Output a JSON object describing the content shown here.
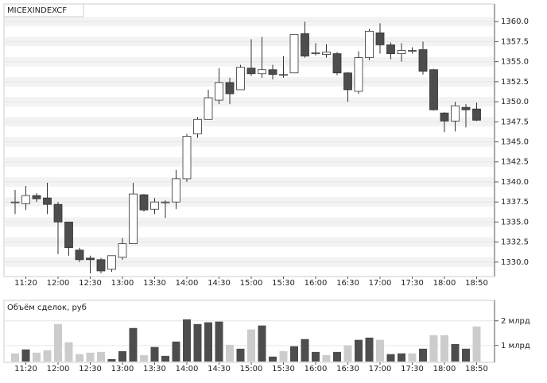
{
  "chart_data": [
    {
      "type": "candlestick",
      "title": "MICEXINDEXCF",
      "categories": [
        null,
        "11:20",
        null,
        null,
        "12:00",
        null,
        null,
        "12:30",
        null,
        null,
        "13:00",
        null,
        null,
        "13:30",
        null,
        null,
        "14:00",
        null,
        null,
        "14:30",
        null,
        null,
        "15:00",
        null,
        null,
        "15:30",
        null,
        null,
        "16:00",
        null,
        null,
        "16:30",
        null,
        null,
        "17:00",
        null,
        null,
        "17:30",
        null,
        null,
        "18:00",
        null,
        null,
        "18:50"
      ],
      "open": [
        1337.5,
        1337.3,
        1338.3,
        1338.0,
        1337.2,
        1335.0,
        1331.5,
        1330.5,
        1330.3,
        1329.1,
        1330.6,
        1332.3,
        1338.4,
        1336.6,
        1337.5,
        1337.5,
        1340.4,
        1346.0,
        1347.8,
        1350.2,
        1352.4,
        1351.5,
        1354.2,
        1353.5,
        1354.0,
        1353.4,
        1353.6,
        1358.5,
        1356.1,
        1355.9,
        1356.0,
        1353.6,
        1351.3,
        1355.5,
        1358.6,
        1357.1,
        1356.0,
        1356.4,
        1356.5,
        1354.0,
        1348.6,
        1347.6,
        1349.3,
        1349.1
      ],
      "high": [
        1339.0,
        1339.5,
        1338.6,
        1339.9,
        1337.5,
        1335.0,
        1331.8,
        1330.8,
        1330.5,
        1330.8,
        1333.0,
        1339.9,
        1338.5,
        1338.0,
        1337.7,
        1341.5,
        1346.0,
        1348.1,
        1351.5,
        1354.2,
        1353.0,
        1354.6,
        1357.8,
        1358.1,
        1354.6,
        1355.7,
        1358.4,
        1360.0,
        1357.3,
        1357.2,
        1356.2,
        1353.7,
        1356.3,
        1359.1,
        1359.8,
        1357.4,
        1357.3,
        1356.8,
        1357.5,
        1354.1,
        1348.7,
        1350.0,
        1349.7,
        1349.9
      ],
      "low": [
        1336.0,
        1336.5,
        1337.5,
        1336.0,
        1331.0,
        1330.8,
        1330.0,
        1328.6,
        1328.6,
        1328.8,
        1330.3,
        1332.3,
        1336.3,
        1336.0,
        1335.5,
        1336.6,
        1340.0,
        1345.5,
        1347.8,
        1349.7,
        1349.7,
        1351.5,
        1353.2,
        1353.0,
        1352.8,
        1353.0,
        1353.6,
        1355.5,
        1355.8,
        1355.5,
        1353.3,
        1350.0,
        1351.0,
        1355.2,
        1356.0,
        1355.3,
        1355.0,
        1356.0,
        1353.4,
        1348.9,
        1346.2,
        1346.3,
        1346.8,
        1347.6
      ],
      "close": [
        1337.5,
        1338.3,
        1337.9,
        1337.2,
        1335.0,
        1331.8,
        1330.3,
        1330.3,
        1328.9,
        1330.8,
        1332.3,
        1338.5,
        1336.5,
        1337.5,
        1337.5,
        1340.4,
        1345.7,
        1347.8,
        1350.5,
        1352.4,
        1351.0,
        1354.3,
        1353.5,
        1354.0,
        1353.4,
        1353.4,
        1358.4,
        1355.7,
        1356.1,
        1356.2,
        1353.6,
        1351.5,
        1355.5,
        1358.8,
        1357.1,
        1356.0,
        1356.4,
        1356.4,
        1353.8,
        1349.0,
        1347.6,
        1349.5,
        1349.0,
        1347.7
      ],
      "up_color": "#ffffff",
      "down_color": "#4d4d4d",
      "ylim": [
        1328.3,
        1362.2
      ],
      "yticks": [
        {
          "value": 1330,
          "label": "1330.0"
        },
        {
          "value": 1332.5,
          "label": "1332.5"
        },
        {
          "value": 1335,
          "label": "1335.0"
        },
        {
          "value": 1337.5,
          "label": "1337.5"
        },
        {
          "value": 1340,
          "label": "1340.0"
        },
        {
          "value": 1342.5,
          "label": "1342.5"
        },
        {
          "value": 1345,
          "label": "1345.0"
        },
        {
          "value": 1347.5,
          "label": "1347.5"
        },
        {
          "value": 1350,
          "label": "1350.0"
        },
        {
          "value": 1352.5,
          "label": "1352.5"
        },
        {
          "value": 1355,
          "label": "1355.0"
        },
        {
          "value": 1357.5,
          "label": "1357.5"
        },
        {
          "value": 1360,
          "label": "1360.0"
        }
      ],
      "grid": true
    },
    {
      "type": "bar",
      "title": "Объём сделок, руб",
      "categories": [
        null,
        "11:20",
        null,
        null,
        "12:00",
        null,
        null,
        "12:30",
        null,
        null,
        "13:00",
        null,
        null,
        "13:30",
        null,
        null,
        "14:00",
        null,
        null,
        "14:30",
        null,
        null,
        "15:00",
        null,
        null,
        "15:30",
        null,
        null,
        "16:00",
        null,
        null,
        "16:30",
        null,
        null,
        "17:00",
        null,
        null,
        "17:30",
        null,
        null,
        "18:00",
        null,
        null,
        "18:50"
      ],
      "values": [
        0.68,
        0.84,
        0.71,
        0.81,
        1.87,
        1.13,
        0.65,
        0.71,
        0.74,
        0.45,
        0.77,
        1.71,
        0.61,
        0.94,
        0.58,
        1.16,
        2.06,
        1.87,
        1.94,
        1.97,
        1.03,
        0.87,
        1.65,
        1.81,
        0.55,
        0.77,
        0.97,
        1.26,
        0.74,
        0.61,
        0.74,
        1.0,
        1.23,
        1.32,
        1.23,
        0.65,
        0.68,
        0.68,
        0.87,
        1.42,
        1.42,
        1.06,
        0.87,
        1.77
      ],
      "colors": [
        "#cccccc",
        "#4d4d4d",
        "#cccccc",
        "#cccccc",
        "#cccccc",
        "#cccccc",
        "#cccccc",
        "#cccccc",
        "#cccccc",
        "#4d4d4d",
        "#4d4d4d",
        "#4d4d4d",
        "#cccccc",
        "#4d4d4d",
        "#4d4d4d",
        "#4d4d4d",
        "#4d4d4d",
        "#4d4d4d",
        "#4d4d4d",
        "#4d4d4d",
        "#cccccc",
        "#4d4d4d",
        "#cccccc",
        "#4d4d4d",
        "#4d4d4d",
        "#cccccc",
        "#4d4d4d",
        "#4d4d4d",
        "#4d4d4d",
        "#cccccc",
        "#4d4d4d",
        "#cccccc",
        "#4d4d4d",
        "#4d4d4d",
        "#cccccc",
        "#4d4d4d",
        "#4d4d4d",
        "#cccccc",
        "#4d4d4d",
        "#cccccc",
        "#cccccc",
        "#4d4d4d",
        "#4d4d4d",
        "#cccccc"
      ],
      "ylim": [
        0.35,
        2.25
      ],
      "yticks": [
        {
          "value": 1,
          "label": "1 млрд"
        },
        {
          "value": 2,
          "label": "2 млрд"
        }
      ],
      "grid": true
    }
  ]
}
